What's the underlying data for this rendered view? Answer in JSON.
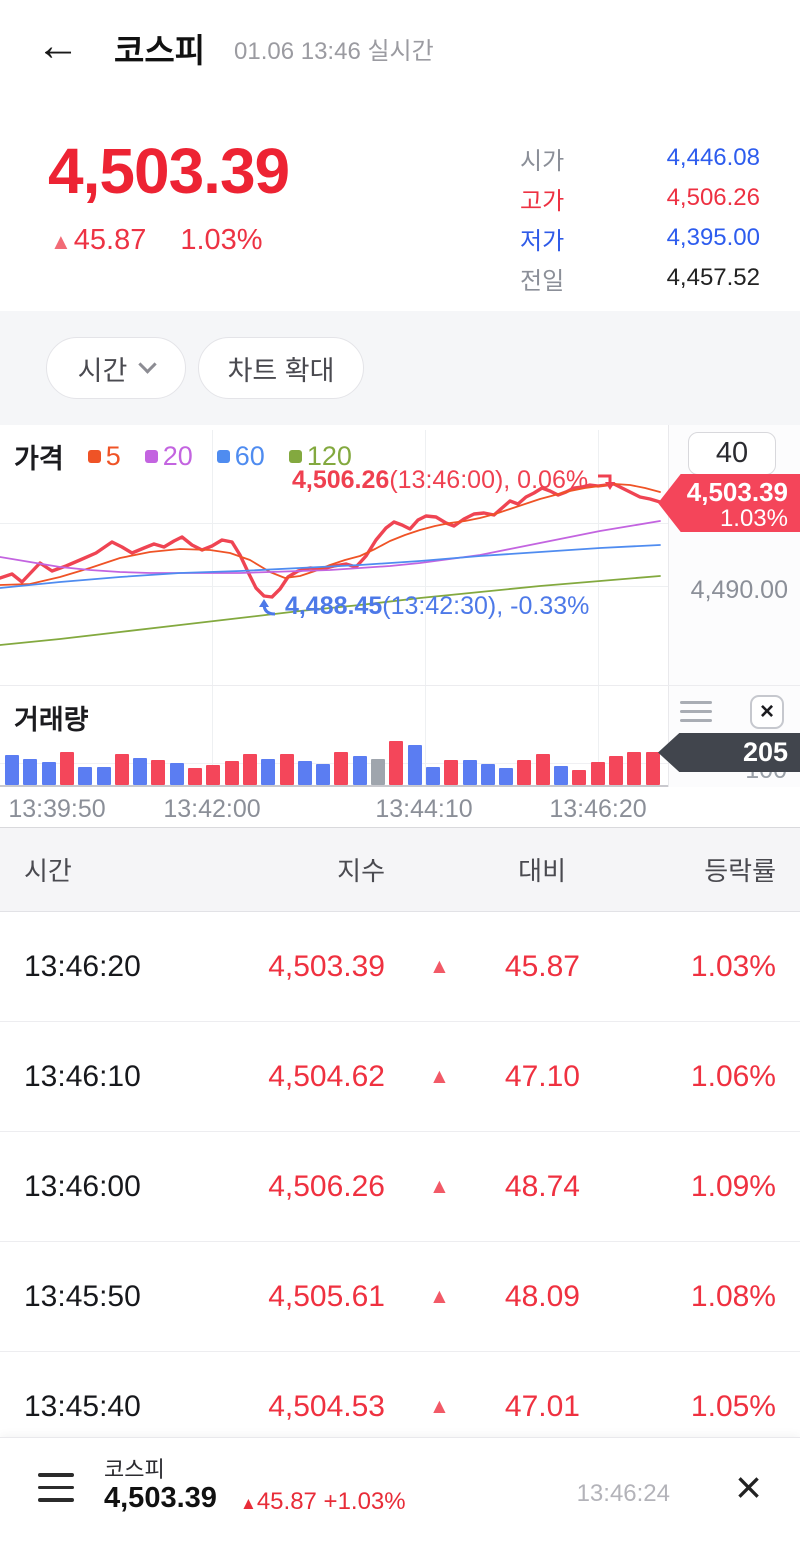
{
  "header": {
    "back": "←",
    "title": "코스피",
    "timestamp": "01.06 13:46 실시간"
  },
  "quote": {
    "price": "4,503.39",
    "arrow": "▲",
    "change": "45.87",
    "change_pct": "1.03%"
  },
  "stats": {
    "rows": [
      {
        "label": "시가",
        "value": "4,446.08"
      },
      {
        "label": "고가",
        "value": "4,506.26"
      },
      {
        "label": "저가",
        "value": "4,395.00"
      },
      {
        "label": "전일",
        "value": "4,457.52"
      }
    ]
  },
  "controls": {
    "interval_label": "시간",
    "expand_label": "차트 확대"
  },
  "chart": {
    "legend_title": "가격",
    "legend": [
      {
        "label": "5",
        "color": "#ef5326"
      },
      {
        "label": "20",
        "color": "#c364e0"
      },
      {
        "label": "60",
        "color": "#4f8cf0"
      },
      {
        "label": "120",
        "color": "#83a93f"
      }
    ],
    "annotation_high": {
      "value": "4,506.26",
      "suffix": "(13:46:00), 0.06%"
    },
    "annotation_low": {
      "value": "4,488.45",
      "suffix": "(13:42:30), -0.33%"
    },
    "interval_count": "40",
    "price_badge": {
      "price": "4,503.39",
      "pct": "1.03%"
    },
    "y_label": "4,490.00",
    "series": [
      {
        "name": "price",
        "color": "#ef4453",
        "width": 3.4,
        "points": [
          [
            0,
            153
          ],
          [
            12,
            149
          ],
          [
            22,
            157
          ],
          [
            40,
            138
          ],
          [
            52,
            146
          ],
          [
            66,
            141
          ],
          [
            80,
            135
          ],
          [
            96,
            128
          ],
          [
            112,
            117
          ],
          [
            122,
            122
          ],
          [
            132,
            128
          ],
          [
            144,
            123
          ],
          [
            154,
            119
          ],
          [
            164,
            122
          ],
          [
            174,
            116
          ],
          [
            182,
            112
          ],
          [
            192,
            120
          ],
          [
            202,
            125
          ],
          [
            212,
            121
          ],
          [
            222,
            115
          ],
          [
            232,
            117
          ],
          [
            240,
            130
          ],
          [
            248,
            147
          ],
          [
            256,
            163
          ],
          [
            264,
            171
          ],
          [
            272,
            172
          ],
          [
            280,
            164
          ],
          [
            288,
            152
          ],
          [
            298,
            146
          ],
          [
            310,
            143
          ],
          [
            322,
            144
          ],
          [
            334,
            141
          ],
          [
            346,
            139
          ],
          [
            356,
            142
          ],
          [
            366,
            131
          ],
          [
            376,
            115
          ],
          [
            386,
            103
          ],
          [
            394,
            97
          ],
          [
            402,
            100
          ],
          [
            410,
            104
          ],
          [
            418,
            95
          ],
          [
            426,
            91
          ],
          [
            436,
            92
          ],
          [
            446,
            98
          ],
          [
            454,
            101
          ],
          [
            464,
            94
          ],
          [
            474,
            89
          ],
          [
            484,
            88
          ],
          [
            494,
            90
          ],
          [
            502,
            83
          ],
          [
            510,
            76
          ],
          [
            518,
            79
          ],
          [
            526,
            72
          ],
          [
            534,
            68
          ],
          [
            542,
            63
          ],
          [
            550,
            66
          ],
          [
            558,
            70
          ],
          [
            566,
            67
          ],
          [
            574,
            63
          ],
          [
            582,
            62
          ],
          [
            590,
            60
          ],
          [
            598,
            61
          ],
          [
            606,
            60
          ],
          [
            614,
            59
          ],
          [
            622,
            63
          ],
          [
            630,
            67
          ],
          [
            640,
            72
          ],
          [
            650,
            74
          ],
          [
            660,
            77
          ]
        ]
      },
      {
        "name": "ma5",
        "color": "#ef5326",
        "width": 1.8,
        "points": [
          [
            0,
            160
          ],
          [
            30,
            159
          ],
          [
            60,
            152
          ],
          [
            90,
            143
          ],
          [
            120,
            133
          ],
          [
            150,
            127
          ],
          [
            180,
            124
          ],
          [
            210,
            125
          ],
          [
            230,
            128
          ],
          [
            250,
            135
          ],
          [
            270,
            147
          ],
          [
            285,
            153
          ],
          [
            300,
            151
          ],
          [
            315,
            146
          ],
          [
            330,
            140
          ],
          [
            345,
            135
          ],
          [
            360,
            131
          ],
          [
            375,
            124
          ],
          [
            390,
            116
          ],
          [
            405,
            110
          ],
          [
            420,
            105
          ],
          [
            435,
            101
          ],
          [
            450,
            98
          ],
          [
            465,
            96
          ],
          [
            480,
            93
          ],
          [
            495,
            89
          ],
          [
            510,
            84
          ],
          [
            525,
            79
          ],
          [
            540,
            74
          ],
          [
            555,
            70
          ],
          [
            570,
            66
          ],
          [
            585,
            63
          ],
          [
            600,
            61
          ],
          [
            615,
            59
          ],
          [
            630,
            60
          ],
          [
            645,
            63
          ],
          [
            660,
            67
          ]
        ]
      },
      {
        "name": "ma20",
        "color": "#c364e0",
        "width": 1.8,
        "points": [
          [
            0,
            132
          ],
          [
            30,
            137
          ],
          [
            60,
            142
          ],
          [
            90,
            145
          ],
          [
            120,
            147
          ],
          [
            150,
            148
          ],
          [
            180,
            148
          ],
          [
            210,
            148
          ],
          [
            240,
            148
          ],
          [
            270,
            147
          ],
          [
            300,
            146
          ],
          [
            330,
            145
          ],
          [
            360,
            143
          ],
          [
            390,
            141
          ],
          [
            420,
            138
          ],
          [
            450,
            134
          ],
          [
            480,
            130
          ],
          [
            510,
            124
          ],
          [
            540,
            118
          ],
          [
            570,
            112
          ],
          [
            600,
            106
          ],
          [
            630,
            101
          ],
          [
            660,
            96
          ]
        ]
      },
      {
        "name": "ma60",
        "color": "#4f8cf0",
        "width": 1.8,
        "points": [
          [
            0,
            163
          ],
          [
            60,
            157
          ],
          [
            120,
            152
          ],
          [
            180,
            148
          ],
          [
            240,
            146
          ],
          [
            300,
            143
          ],
          [
            360,
            140
          ],
          [
            420,
            136
          ],
          [
            480,
            131
          ],
          [
            540,
            127
          ],
          [
            600,
            123
          ],
          [
            660,
            120
          ]
        ]
      },
      {
        "name": "ma120",
        "color": "#83a93f",
        "width": 1.8,
        "points": [
          [
            0,
            220
          ],
          [
            60,
            214
          ],
          [
            120,
            207
          ],
          [
            180,
            200
          ],
          [
            240,
            193
          ],
          [
            300,
            186
          ],
          [
            360,
            180
          ],
          [
            420,
            173
          ],
          [
            480,
            167
          ],
          [
            540,
            161
          ],
          [
            600,
            156
          ],
          [
            660,
            151
          ]
        ]
      }
    ]
  },
  "volume": {
    "title": "거래량",
    "badge": "205",
    "y_label": "100",
    "bar_colors": {
      "r": "#f4465a",
      "b": "#5b7df2",
      "g": "#9fa5ad"
    },
    "bars": [
      [
        "b",
        30
      ],
      [
        "b",
        26
      ],
      [
        "b",
        23
      ],
      [
        "r",
        33
      ],
      [
        "b",
        18
      ],
      [
        "b",
        18
      ],
      [
        "r",
        31
      ],
      [
        "b",
        27
      ],
      [
        "r",
        25
      ],
      [
        "b",
        22
      ],
      [
        "r",
        17
      ],
      [
        "r",
        20
      ],
      [
        "r",
        24
      ],
      [
        "r",
        31
      ],
      [
        "b",
        26
      ],
      [
        "r",
        31
      ],
      [
        "b",
        24
      ],
      [
        "b",
        21
      ],
      [
        "r",
        33
      ],
      [
        "b",
        29
      ],
      [
        "g",
        26
      ],
      [
        "r",
        44
      ],
      [
        "b",
        40
      ],
      [
        "b",
        18
      ],
      [
        "r",
        25
      ],
      [
        "b",
        25
      ],
      [
        "b",
        21
      ],
      [
        "b",
        17
      ],
      [
        "r",
        25
      ],
      [
        "r",
        31
      ],
      [
        "b",
        19
      ],
      [
        "r",
        15
      ],
      [
        "r",
        23
      ],
      [
        "r",
        29
      ],
      [
        "r",
        33
      ],
      [
        "r",
        33
      ]
    ]
  },
  "x_axis": {
    "ticks": [
      "13:39:50",
      "13:42:00",
      "13:44:10",
      "13:46:20"
    ],
    "positions": [
      57,
      212,
      424,
      598
    ]
  },
  "table": {
    "headers": [
      "시간",
      "지수",
      "대비",
      "등락률"
    ],
    "arrow": "▲",
    "rows": [
      {
        "time": "13:46:20",
        "index": "4,503.39",
        "change": "45.87",
        "pct": "1.03%"
      },
      {
        "time": "13:46:10",
        "index": "4,504.62",
        "change": "47.10",
        "pct": "1.06%"
      },
      {
        "time": "13:46:00",
        "index": "4,506.26",
        "change": "48.74",
        "pct": "1.09%"
      },
      {
        "time": "13:45:50",
        "index": "4,505.61",
        "change": "48.09",
        "pct": "1.08%"
      },
      {
        "time": "13:45:40",
        "index": "4,504.53",
        "change": "47.01",
        "pct": "1.05%"
      }
    ]
  },
  "footer": {
    "name": "코스피",
    "price": "4,503.39",
    "arrow": "▲",
    "change": "45.87 +1.03%",
    "time": "13:46:24",
    "close": "×"
  }
}
